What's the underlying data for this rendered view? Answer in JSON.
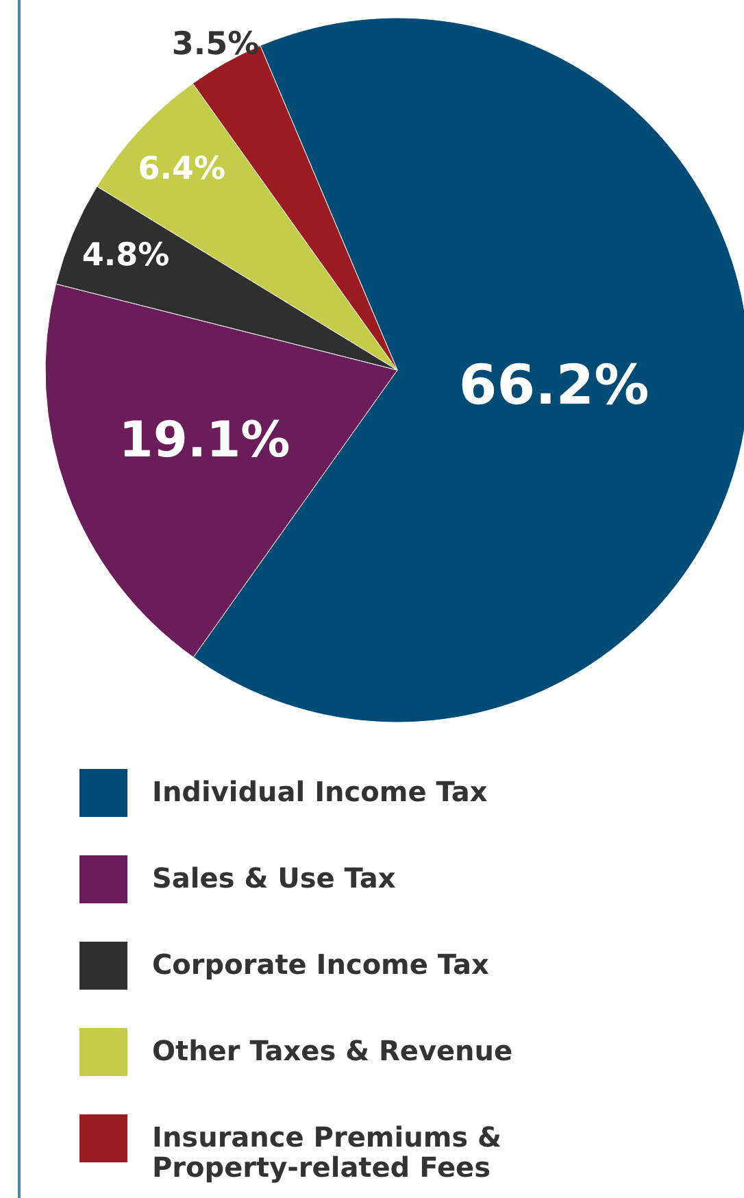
{
  "chart_data": {
    "type": "pie",
    "categories": [
      "Individual Income Tax",
      "Sales & Use Tax",
      "Corporate Income Tax",
      "Other Taxes & Revenue",
      "Insurance Premiums & Property-related Fees"
    ],
    "values": [
      66.2,
      19.1,
      4.8,
      6.4,
      3.5
    ],
    "colors": [
      "#004c76",
      "#6a1d5a",
      "#2f2f2f",
      "#c4cd4a",
      "#9b1c20"
    ],
    "value_labels": [
      "66.2%",
      "19.1%",
      "4.8%",
      "6.4%",
      "3.5%"
    ],
    "legend": "bottom"
  }
}
